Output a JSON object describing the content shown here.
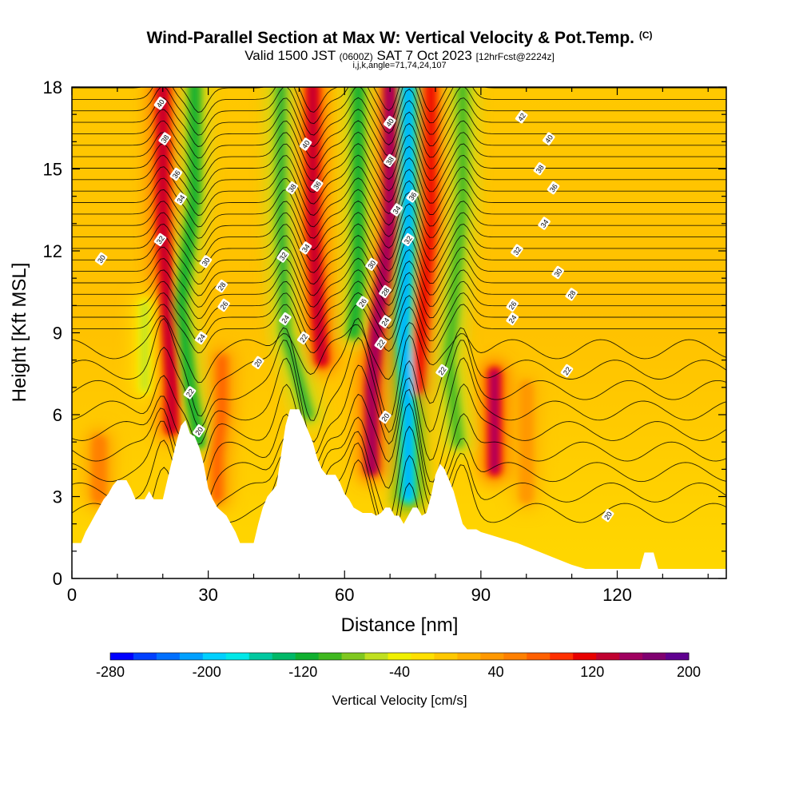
{
  "header": {
    "title": "Wind-Parallel Section at Max W: Vertical Velocity & Pot.Temp.",
    "title_mark": "(C)",
    "valid_prefix": "Valid 1500 JST",
    "valid_utc": "(0600Z)",
    "valid_date": "SAT 7 Oct 2023",
    "forecast": "[12hrFcst@2224z]",
    "section_params": "i,j,k,angle=71,74,24,107"
  },
  "chart_data": {
    "type": "heatmap",
    "xlabel": "Distance [nm]",
    "ylabel": "Height [Kft MSL]",
    "xlim": [
      0,
      144
    ],
    "ylim": [
      0,
      18
    ],
    "x_ticks": [
      0,
      30,
      60,
      90,
      120
    ],
    "y_ticks": [
      0,
      3,
      6,
      9,
      12,
      15,
      18
    ],
    "colorbar": {
      "label": "Vertical Velocity [cm/s]",
      "range": [
        -280,
        200
      ],
      "tick_labels": [
        -280,
        -200,
        -120,
        -40,
        40,
        120,
        200
      ],
      "colors": [
        "#0000ff",
        "#0040ff",
        "#0070ff",
        "#00a0ff",
        "#00d0ff",
        "#00e8e8",
        "#00c8a0",
        "#00b868",
        "#10b030",
        "#40b820",
        "#80c820",
        "#c0e020",
        "#f0f000",
        "#ffe000",
        "#ffc800",
        "#ffb000",
        "#ff9800",
        "#ff8000",
        "#ff6000",
        "#ff3000",
        "#e80000",
        "#c00030",
        "#a00060",
        "#800070",
        "#600090"
      ]
    },
    "terrain": [
      [
        0,
        1.3
      ],
      [
        2,
        1.3
      ],
      [
        3,
        1.7
      ],
      [
        4,
        2.0
      ],
      [
        5,
        2.3
      ],
      [
        6,
        2.6
      ],
      [
        7,
        2.9
      ],
      [
        8,
        3.1
      ],
      [
        9,
        3.4
      ],
      [
        10,
        3.6
      ],
      [
        12,
        3.6
      ],
      [
        13,
        3.3
      ],
      [
        14,
        2.9
      ],
      [
        16,
        2.9
      ],
      [
        17,
        3.2
      ],
      [
        18,
        2.9
      ],
      [
        20,
        2.9
      ],
      [
        21,
        3.6
      ],
      [
        22,
        4.3
      ],
      [
        23,
        5.0
      ],
      [
        24,
        5.6
      ],
      [
        25,
        5.8
      ],
      [
        26,
        5.3
      ],
      [
        27,
        5.2
      ],
      [
        28,
        4.8
      ],
      [
        29,
        4.2
      ],
      [
        30,
        3.3
      ],
      [
        31,
        2.9
      ],
      [
        32,
        2.6
      ],
      [
        34,
        2.3
      ],
      [
        35,
        2.0
      ],
      [
        36,
        1.7
      ],
      [
        37,
        1.3
      ],
      [
        40,
        1.3
      ],
      [
        41,
        2.0
      ],
      [
        42,
        2.6
      ],
      [
        43,
        3.0
      ],
      [
        45,
        3.4
      ],
      [
        46,
        4.5
      ],
      [
        47,
        5.6
      ],
      [
        48,
        6.2
      ],
      [
        50,
        6.2
      ],
      [
        51,
        5.8
      ],
      [
        52,
        5.4
      ],
      [
        53,
        5.0
      ],
      [
        54,
        4.4
      ],
      [
        55,
        4.0
      ],
      [
        56,
        3.8
      ],
      [
        58,
        3.8
      ],
      [
        59,
        3.5
      ],
      [
        60,
        3.1
      ],
      [
        61,
        2.9
      ],
      [
        62,
        2.6
      ],
      [
        63,
        2.5
      ],
      [
        64,
        2.4
      ],
      [
        66,
        2.4
      ],
      [
        67,
        2.3
      ],
      [
        68,
        2.4
      ],
      [
        69,
        2.6
      ],
      [
        70,
        2.6
      ],
      [
        71,
        2.3
      ],
      [
        72,
        2.3
      ],
      [
        73,
        2.0
      ],
      [
        74,
        2.3
      ],
      [
        75,
        2.6
      ],
      [
        76,
        2.6
      ],
      [
        77,
        2.3
      ],
      [
        78,
        2.4
      ],
      [
        79,
        3.0
      ],
      [
        80,
        3.8
      ],
      [
        81,
        4.2
      ],
      [
        82,
        4.0
      ],
      [
        83,
        3.6
      ],
      [
        84,
        3.2
      ],
      [
        85,
        2.6
      ],
      [
        86,
        2.0
      ],
      [
        87,
        1.8
      ],
      [
        89,
        1.8
      ],
      [
        90,
        1.7
      ],
      [
        92,
        1.6
      ],
      [
        94,
        1.5
      ],
      [
        96,
        1.4
      ],
      [
        98,
        1.3
      ],
      [
        101,
        1.1
      ],
      [
        104,
        0.9
      ],
      [
        107,
        0.7
      ],
      [
        110,
        0.5
      ],
      [
        113,
        0.35
      ],
      [
        116,
        0.35
      ],
      [
        125,
        0.35
      ],
      [
        126,
        0.95
      ],
      [
        128,
        0.95
      ],
      [
        129,
        0.35
      ],
      [
        144,
        0.35
      ]
    ],
    "updrafts": [
      {
        "points": [
          [
            20,
            18
          ],
          [
            20,
            13
          ],
          [
            21,
            10
          ],
          [
            22,
            7
          ],
          [
            22,
            5.5
          ]
        ],
        "peak": 140
      },
      {
        "points": [
          [
            33,
            8
          ],
          [
            33,
            6
          ],
          [
            32,
            4.5
          ],
          [
            32,
            3
          ]
        ],
        "peak": 80
      },
      {
        "points": [
          [
            53,
            18
          ],
          [
            53,
            13
          ],
          [
            54,
            10
          ],
          [
            55,
            8
          ]
        ],
        "peak": 140
      },
      {
        "points": [
          [
            70,
            18
          ],
          [
            70,
            13
          ],
          [
            67,
            9
          ],
          [
            66,
            7
          ],
          [
            66,
            4
          ]
        ],
        "peak": 160
      },
      {
        "points": [
          [
            79,
            18
          ],
          [
            79,
            13
          ],
          [
            77,
            9
          ],
          [
            76,
            7
          ]
        ],
        "peak": 110
      },
      {
        "points": [
          [
            93,
            7.5
          ],
          [
            93,
            5
          ],
          [
            93,
            4
          ]
        ],
        "peak": 150
      },
      {
        "points": [
          [
            6,
            5
          ],
          [
            6,
            3
          ]
        ],
        "peak": 60
      },
      {
        "points": [
          [
            100,
            7
          ],
          [
            100,
            3
          ]
        ],
        "peak": 40
      }
    ],
    "downdrafts": [
      {
        "points": [
          [
            27,
            18
          ],
          [
            27,
            14
          ],
          [
            24,
            10
          ],
          [
            26,
            7
          ],
          [
            28,
            5
          ]
        ],
        "peak": -120
      },
      {
        "points": [
          [
            46,
            18
          ],
          [
            46,
            13
          ],
          [
            47,
            9
          ],
          [
            52,
            6
          ]
        ],
        "peak": -110
      },
      {
        "points": [
          [
            63,
            18
          ],
          [
            63,
            14
          ],
          [
            63,
            11
          ],
          [
            62,
            9
          ]
        ],
        "peak": -120
      },
      {
        "points": [
          [
            74,
            18
          ],
          [
            74,
            13
          ],
          [
            73,
            9
          ],
          [
            74,
            6
          ],
          [
            74,
            3
          ]
        ],
        "peak": -220
      },
      {
        "points": [
          [
            86,
            18
          ],
          [
            86,
            14
          ],
          [
            83,
            8
          ],
          [
            85,
            5
          ]
        ],
        "peak": -100
      },
      {
        "points": [
          [
            16,
            10
          ],
          [
            16,
            7
          ]
        ],
        "peak": -60
      }
    ],
    "theta_labels": [
      {
        "x": 19.5,
        "y": 17.4,
        "text": "40"
      },
      {
        "x": 20.5,
        "y": 16.1,
        "text": "38"
      },
      {
        "x": 23.0,
        "y": 14.8,
        "text": "36"
      },
      {
        "x": 24.0,
        "y": 13.9,
        "text": "34"
      },
      {
        "x": 19.5,
        "y": 12.4,
        "text": "32"
      },
      {
        "x": 6.5,
        "y": 11.7,
        "text": "30"
      },
      {
        "x": 29.5,
        "y": 11.6,
        "text": "30"
      },
      {
        "x": 33.0,
        "y": 10.7,
        "text": "28"
      },
      {
        "x": 33.5,
        "y": 10.0,
        "text": "26"
      },
      {
        "x": 28.5,
        "y": 8.8,
        "text": "24"
      },
      {
        "x": 26.0,
        "y": 6.8,
        "text": "22"
      },
      {
        "x": 28.0,
        "y": 5.4,
        "text": "20"
      },
      {
        "x": 41.0,
        "y": 7.9,
        "text": "20"
      },
      {
        "x": 51.0,
        "y": 8.8,
        "text": "22"
      },
      {
        "x": 47.0,
        "y": 9.5,
        "text": "24"
      },
      {
        "x": 46.5,
        "y": 11.8,
        "text": "32"
      },
      {
        "x": 51.5,
        "y": 12.1,
        "text": "34"
      },
      {
        "x": 48.5,
        "y": 14.3,
        "text": "38"
      },
      {
        "x": 54.0,
        "y": 14.4,
        "text": "36"
      },
      {
        "x": 51.5,
        "y": 15.9,
        "text": "40"
      },
      {
        "x": 66.0,
        "y": 11.5,
        "text": "30"
      },
      {
        "x": 69.0,
        "y": 10.5,
        "text": "28"
      },
      {
        "x": 64.0,
        "y": 10.1,
        "text": "26"
      },
      {
        "x": 69.0,
        "y": 9.4,
        "text": "24"
      },
      {
        "x": 68.0,
        "y": 8.6,
        "text": "22"
      },
      {
        "x": 69.0,
        "y": 5.9,
        "text": "20"
      },
      {
        "x": 70.0,
        "y": 16.7,
        "text": "40"
      },
      {
        "x": 70.0,
        "y": 15.3,
        "text": "38"
      },
      {
        "x": 71.5,
        "y": 13.5,
        "text": "34"
      },
      {
        "x": 75.0,
        "y": 14.0,
        "text": "36"
      },
      {
        "x": 74.0,
        "y": 12.4,
        "text": "32"
      },
      {
        "x": 81.5,
        "y": 7.6,
        "text": "22"
      },
      {
        "x": 99.0,
        "y": 16.9,
        "text": "42"
      },
      {
        "x": 105.0,
        "y": 16.1,
        "text": "40"
      },
      {
        "x": 103.0,
        "y": 15.0,
        "text": "38"
      },
      {
        "x": 106.0,
        "y": 14.3,
        "text": "36"
      },
      {
        "x": 104.0,
        "y": 13.0,
        "text": "34"
      },
      {
        "x": 98.0,
        "y": 12.0,
        "text": "32"
      },
      {
        "x": 107.0,
        "y": 11.2,
        "text": "30"
      },
      {
        "x": 110.0,
        "y": 10.4,
        "text": "28"
      },
      {
        "x": 97.0,
        "y": 10.0,
        "text": "26"
      },
      {
        "x": 97.0,
        "y": 9.5,
        "text": "24"
      },
      {
        "x": 109.0,
        "y": 7.6,
        "text": "22"
      },
      {
        "x": 118.0,
        "y": 2.3,
        "text": "20"
      }
    ]
  }
}
